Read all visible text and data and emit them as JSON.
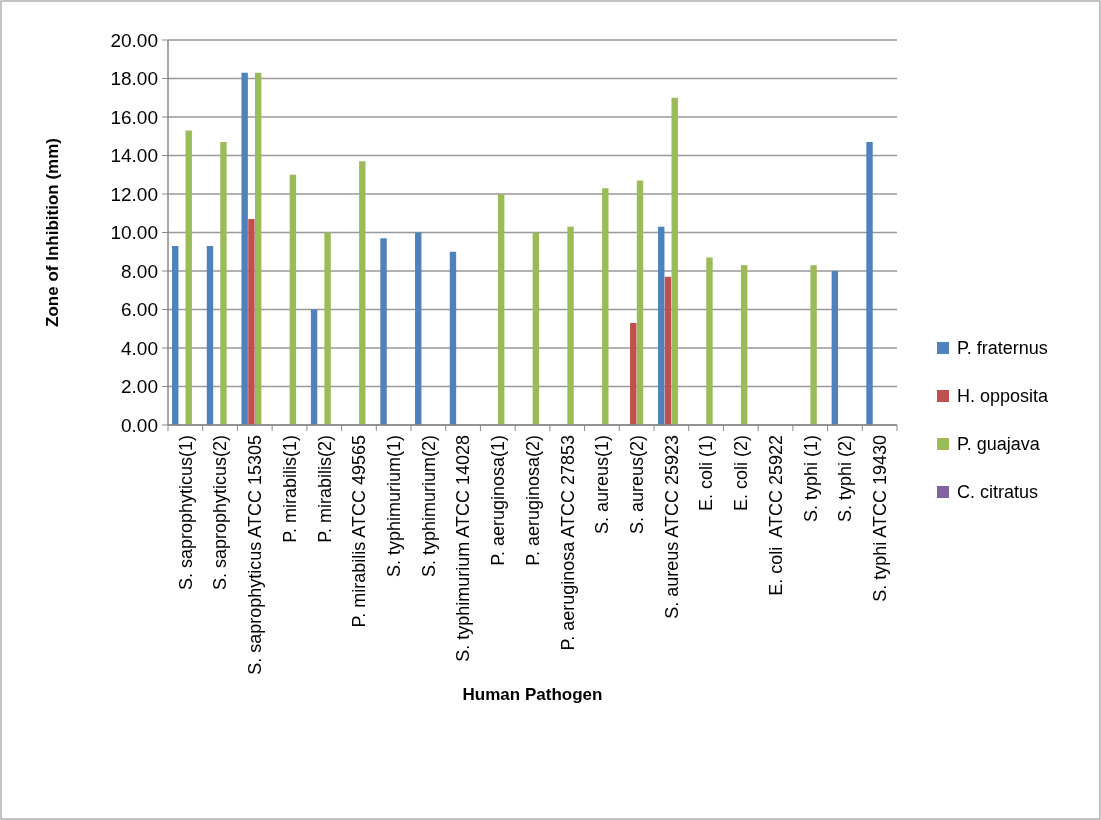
{
  "chart_data": {
    "type": "bar",
    "xlabel": "Human Pathogen",
    "ylabel": "Zone of Inhibition (mm)",
    "categories": [
      "S. saprophyticus(1)",
      "S. saprophyticus(2)",
      "S. saprophyticus ATCC 15305",
      "P. mirabilis(1)",
      "P. mirabilis(2)",
      "P. mirabilis ATCC 49565",
      "S. typhimurium(1)",
      "S. typhimurium(2)",
      "S. typhimurium ATCC 14028",
      "P. aeruginosa(1)",
      "P. aeruginosa(2)",
      "P. aeruginosa ATCC 27853",
      "S. aureus(1)",
      "S. aureus(2)",
      "S. aureus ATCC 25923",
      "E. coli (1)",
      "E. coli (2)",
      "E. coli  ATCC 25922",
      "S. typhi (1)",
      "S. typhi (2)",
      "S. typhi ATCC 19430"
    ],
    "series": [
      {
        "name": "P. fraternus",
        "color": "#4f81bd",
        "values": [
          9.3,
          9.3,
          18.3,
          0,
          6.0,
          0,
          9.7,
          10.0,
          9.0,
          0,
          0,
          0,
          0,
          0,
          10.3,
          0,
          0,
          0,
          0,
          8.0,
          14.7
        ]
      },
      {
        "name": "H. opposita",
        "color": "#c0504d",
        "values": [
          0,
          0,
          10.7,
          0,
          0,
          0,
          0,
          0,
          0,
          0,
          0,
          0,
          0,
          5.3,
          7.7,
          0,
          0,
          0,
          0,
          0,
          0
        ]
      },
      {
        "name": "P. guajava",
        "color": "#9bbb59",
        "values": [
          15.3,
          14.7,
          18.3,
          13.0,
          10.0,
          13.7,
          0,
          0,
          0,
          12.0,
          10.0,
          10.3,
          12.3,
          12.7,
          17.0,
          8.7,
          8.3,
          0,
          8.3,
          0,
          0
        ]
      },
      {
        "name": "C. citratus",
        "color": "#8064a2",
        "values": [
          0,
          0,
          0,
          0,
          0,
          0,
          0,
          0,
          0,
          0,
          0,
          0,
          0,
          0,
          0,
          0,
          0,
          0,
          0,
          0,
          0
        ]
      }
    ],
    "ylim": [
      0,
      20
    ],
    "yticks": [
      {
        "value": 0,
        "label": "0.00"
      },
      {
        "value": 2,
        "label": "2.00"
      },
      {
        "value": 4,
        "label": "4.00"
      },
      {
        "value": 6,
        "label": "6.00"
      },
      {
        "value": 8,
        "label": "8.00"
      },
      {
        "value": 10,
        "label": "10.00"
      },
      {
        "value": 12,
        "label": "12.00"
      },
      {
        "value": 14,
        "label": "14.00"
      },
      {
        "value": 16,
        "label": "16.00"
      },
      {
        "value": 18,
        "label": "18.00"
      },
      {
        "value": 20,
        "label": "20.00"
      }
    ],
    "grid": "y",
    "legend": "right"
  }
}
